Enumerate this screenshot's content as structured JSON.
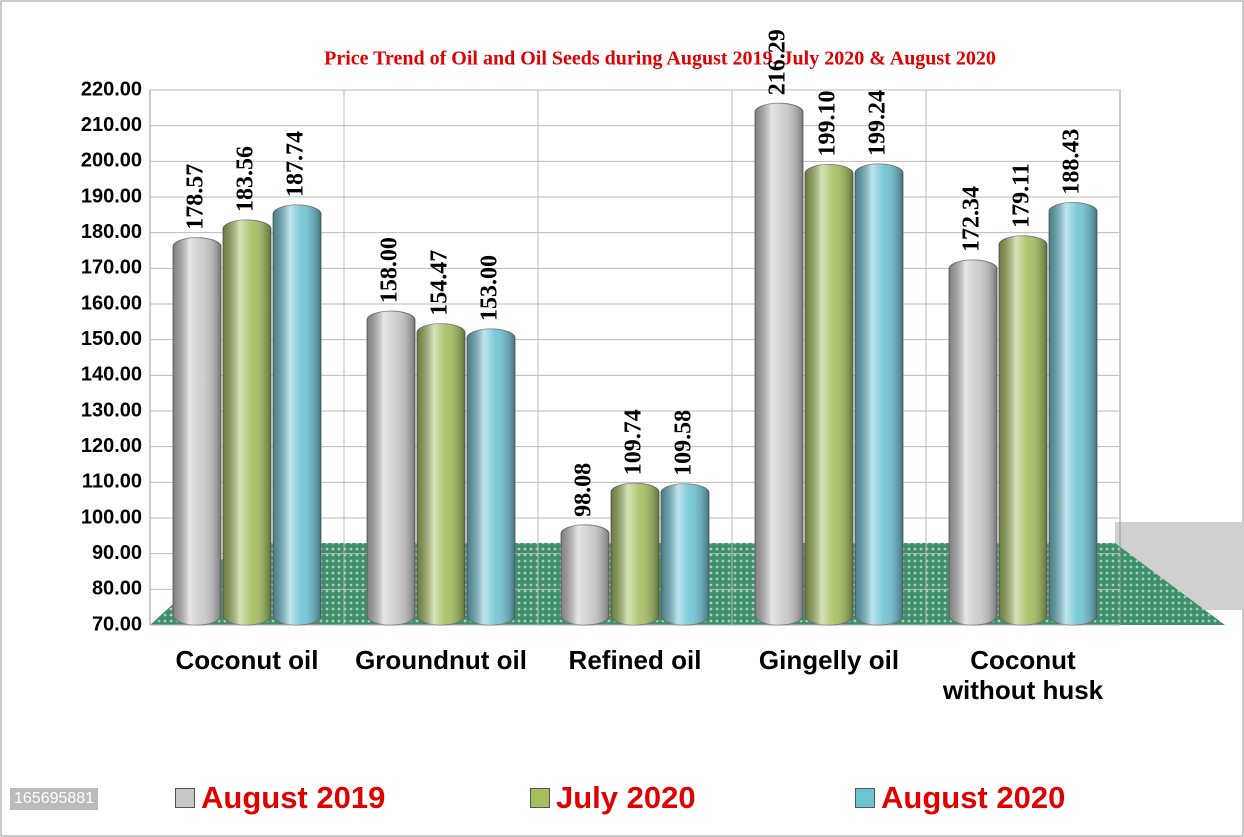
{
  "chart_data": {
    "type": "bar",
    "title": "Price Trend of Oil and Oil Seeds during August 2019, July 2020 & August 2020",
    "categories": [
      "Coconut oil",
      "Groundnut oil",
      "Refined oil",
      "Gingelly oil",
      "Coconut without husk"
    ],
    "series": [
      {
        "name": "August 2019",
        "color": "#c8c8c8",
        "values": [
          178.57,
          158.0,
          98.08,
          216.29,
          172.34
        ],
        "value_labels": [
          "178.57",
          "158.00",
          "98.08",
          "216.29",
          "172.34"
        ]
      },
      {
        "name": "July 2020",
        "color": "#a3bf5e",
        "values": [
          183.56,
          154.47,
          109.74,
          199.1,
          179.11
        ],
        "value_labels": [
          "183.56",
          "154.47",
          "109.74",
          "199.10",
          "179.11"
        ]
      },
      {
        "name": "August 2020",
        "color": "#6cc3d4",
        "values": [
          187.74,
          153.0,
          109.58,
          199.24,
          188.43
        ],
        "value_labels": [
          "187.74",
          "153.00",
          "109.58",
          "199.24",
          "188.43"
        ]
      }
    ],
    "ylim": [
      70,
      220
    ],
    "yticks": [
      {
        "value": 70,
        "label": "70.00"
      },
      {
        "value": 80,
        "label": "80.00"
      },
      {
        "value": 90,
        "label": "90.00"
      },
      {
        "value": 100,
        "label": "100.00"
      },
      {
        "value": 110,
        "label": "110.00"
      },
      {
        "value": 120,
        "label": "120.00"
      },
      {
        "value": 130,
        "label": "130.00"
      },
      {
        "value": 140,
        "label": "140.00"
      },
      {
        "value": 150,
        "label": "150.00"
      },
      {
        "value": 160,
        "label": "160.00"
      },
      {
        "value": 170,
        "label": "170.00"
      },
      {
        "value": 180,
        "label": "180.00"
      },
      {
        "value": 190,
        "label": "190.00"
      },
      {
        "value": 200,
        "label": "200.00"
      },
      {
        "value": 210,
        "label": "210.00"
      },
      {
        "value": 220,
        "label": "220.00"
      }
    ],
    "grid": true,
    "legend": "bottom",
    "watermark": "165695881"
  }
}
